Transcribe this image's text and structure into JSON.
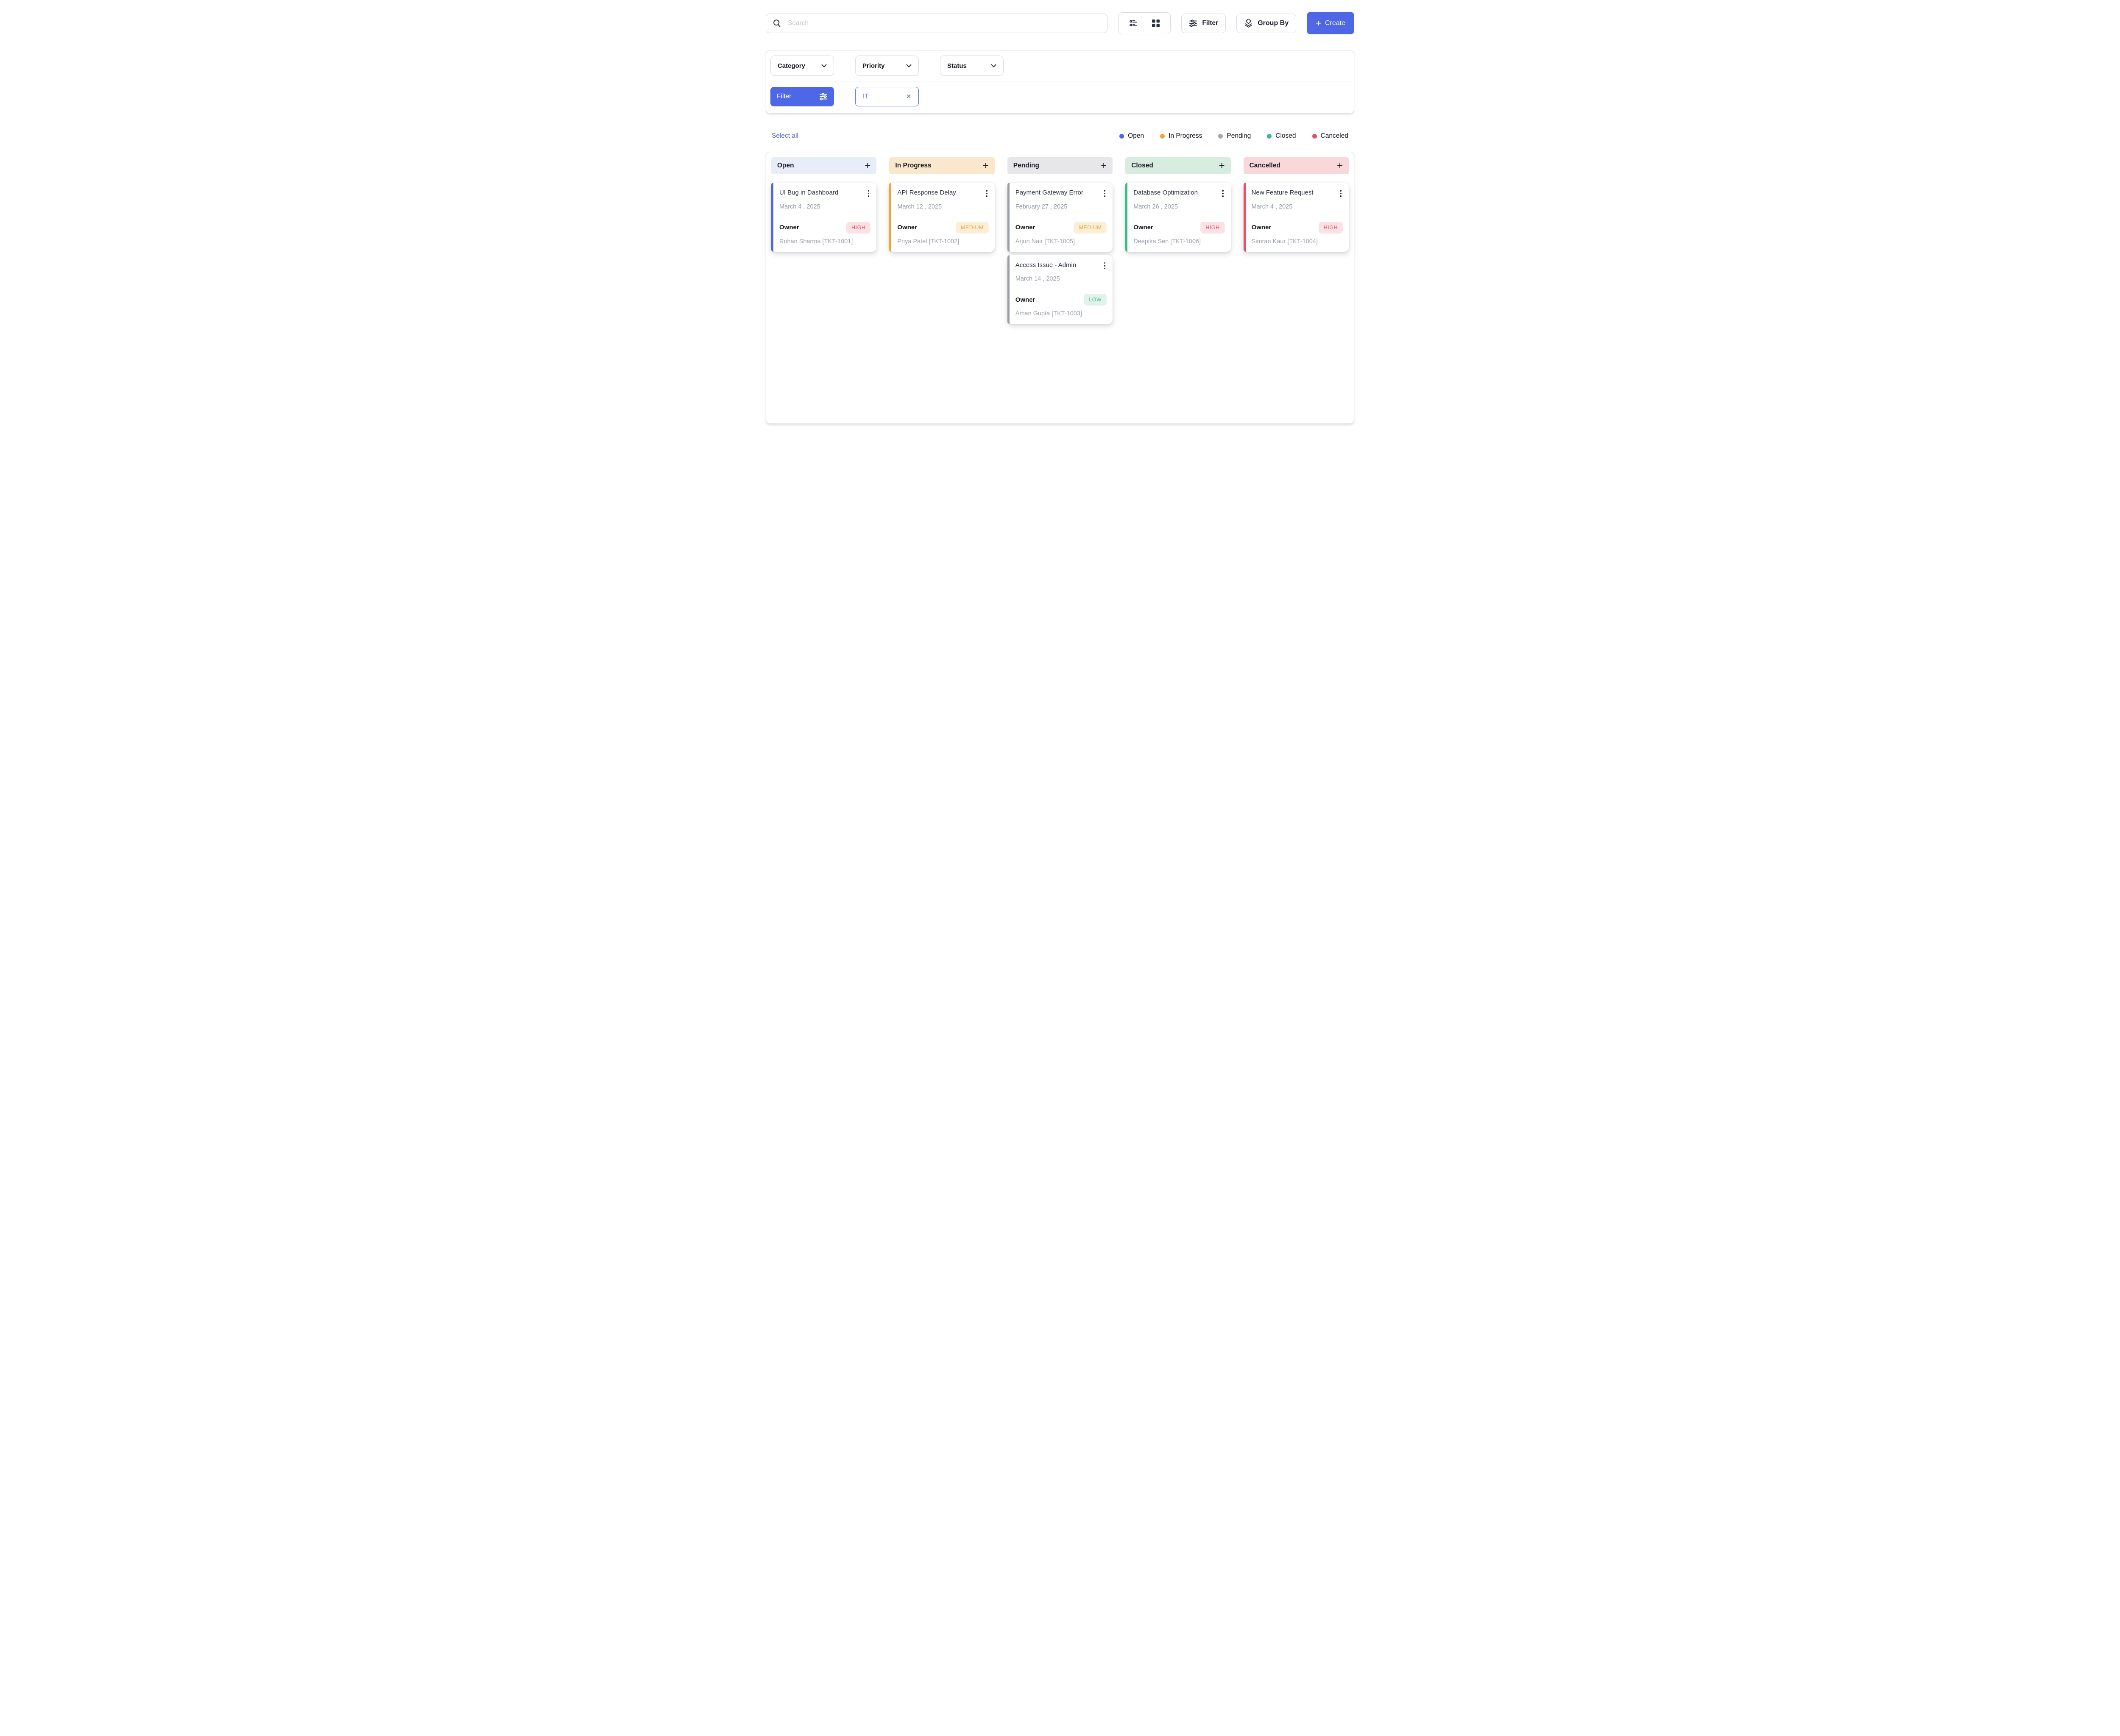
{
  "topbar": {
    "search_placeholder": "Search",
    "filter_label": "Filter",
    "group_by_label": "Group By",
    "create_label": "Create",
    "create_plus": "+"
  },
  "filter_panel": {
    "dropdowns": [
      {
        "label": "Category"
      },
      {
        "label": "Priority"
      },
      {
        "label": "Status"
      }
    ],
    "filter_button_label": "Filter",
    "active_filter_chip": {
      "label": "IT",
      "close": "×"
    }
  },
  "selection": {
    "select_all_label": "Select all"
  },
  "legend": [
    {
      "label": "Open",
      "color": "#4d67e6"
    },
    {
      "label": "In Progress",
      "color": "#f2a434"
    },
    {
      "label": "Pending",
      "color": "#a5a5aa"
    },
    {
      "label": "Closed",
      "color": "#3bbc85"
    },
    {
      "label": "Canceled",
      "color": "#ec4d62"
    }
  ],
  "board": {
    "add_icon": "+",
    "columns": [
      {
        "title": "Open",
        "header_bg": "#e9edfa",
        "accent": "#4d67e6",
        "cards": [
          {
            "title": "UI Bug in Dashboard",
            "date": "March 4 , 2025",
            "owner_label": "Owner",
            "priority": "HIGH",
            "assignee": "Rohan Sharma [TKT-1001]"
          }
        ]
      },
      {
        "title": "In Progress",
        "header_bg": "#fbe8cc",
        "accent": "#f2a434",
        "cards": [
          {
            "title": "API Response Delay",
            "date": "March 12 , 2025",
            "owner_label": "Owner",
            "priority": "MEDIUM",
            "assignee": "Priya Patel [TKT-1002]"
          }
        ]
      },
      {
        "title": "Pending",
        "header_bg": "#e7e7e9",
        "accent": "#9ba0a8",
        "cards": [
          {
            "title": "Payment Gateway Error",
            "date": "February 27 , 2025",
            "owner_label": "Owner",
            "priority": "MEDIUM",
            "assignee": "Arjun Nair [TKT-1005]"
          },
          {
            "title": "Access Issue - Admin",
            "date": "March 14 , 2025",
            "owner_label": "Owner",
            "priority": "LOW",
            "assignee": "Aman Gupta [TKT-1003]"
          }
        ]
      },
      {
        "title": "Closed",
        "header_bg": "#d8ecdf",
        "accent": "#3bbc85",
        "cards": [
          {
            "title": "Database Optimization",
            "date": "March 26 , 2025",
            "owner_label": "Owner",
            "priority": "HIGH",
            "assignee": "Deepika Sen [TKT-1006]"
          }
        ]
      },
      {
        "title": "Cancelled",
        "header_bg": "#fad8da",
        "accent": "#ee4f63",
        "cards": [
          {
            "title": "New Feature Request",
            "date": "March 4 , 2025",
            "owner_label": "Owner",
            "priority": "HIGH",
            "assignee": "Simran Kaur [TKT-1004]"
          }
        ]
      }
    ]
  },
  "priority_styles": {
    "HIGH": {
      "bg": "#fbe3e5",
      "fg": "#ef5365"
    },
    "MEDIUM": {
      "bg": "#fcefd8",
      "fg": "#f3a53c"
    },
    "LOW": {
      "bg": "#e1f3ea",
      "fg": "#46c08d"
    }
  }
}
